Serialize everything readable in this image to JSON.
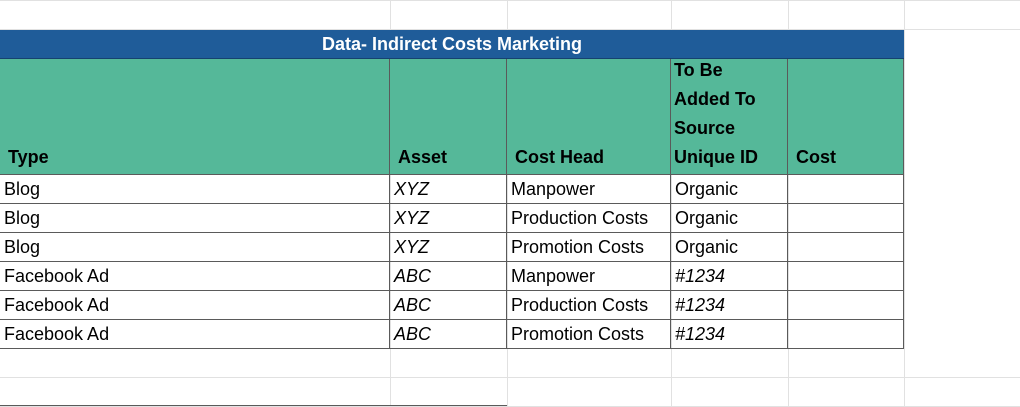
{
  "sheet": {
    "title": "Data- Indirect Costs Marketing",
    "columns": [
      "Type",
      "Asset",
      "Cost Head",
      "To Be Added To Source Unique ID",
      "Cost"
    ],
    "column_lines": [
      "To Be",
      "Added To",
      "Source",
      "Unique ID"
    ],
    "rows": [
      {
        "type": "Blog",
        "asset": "XYZ",
        "cost_head": "Manpower",
        "source_id": "Organic",
        "cost": ""
      },
      {
        "type": "Blog",
        "asset": "XYZ",
        "cost_head": "Production Costs",
        "source_id": "Organic",
        "cost": ""
      },
      {
        "type": "Blog",
        "asset": "XYZ",
        "cost_head": "Promotion Costs",
        "source_id": "Organic",
        "cost": ""
      },
      {
        "type": "Facebook Ad",
        "asset": "ABC",
        "cost_head": "Manpower",
        "source_id": "#1234",
        "cost": ""
      },
      {
        "type": "Facebook Ad",
        "asset": "ABC",
        "cost_head": "Production Costs",
        "source_id": "#1234",
        "cost": ""
      },
      {
        "type": "Facebook Ad",
        "asset": "ABC",
        "cost_head": "Promotion Costs",
        "source_id": "#1234",
        "cost": ""
      }
    ]
  },
  "colors": {
    "title_bg": "#1f5c99",
    "header_bg": "#55b899",
    "gridline": "#e1e1e1"
  }
}
